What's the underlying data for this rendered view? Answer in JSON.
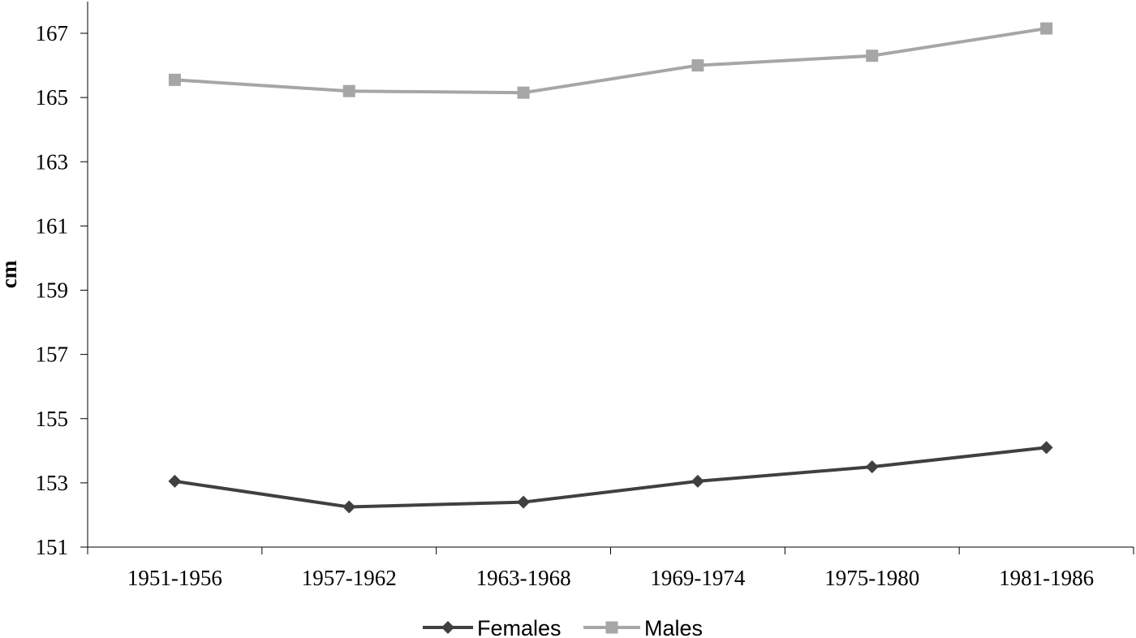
{
  "chart_data": {
    "type": "line",
    "title": "",
    "xlabel": "",
    "ylabel": "cm",
    "categories": [
      "1951-1956",
      "1957-1962",
      "1963-1968",
      "1969-1974",
      "1975-1980",
      "1981-1986"
    ],
    "ylim": [
      151,
      167
    ],
    "yticks": [
      "151",
      "153",
      "155",
      "157",
      "159",
      "161",
      "163",
      "165",
      "167"
    ],
    "grid": false,
    "legend_position": "bottom",
    "series": [
      {
        "name": "Females",
        "marker": "diamond",
        "color": "#404040",
        "values": [
          153.05,
          152.25,
          152.4,
          153.05,
          153.5,
          154.1
        ]
      },
      {
        "name": "Males",
        "marker": "square",
        "color": "#a6a6a6",
        "values": [
          165.55,
          165.2,
          165.15,
          166.0,
          166.3,
          167.15
        ]
      }
    ]
  }
}
